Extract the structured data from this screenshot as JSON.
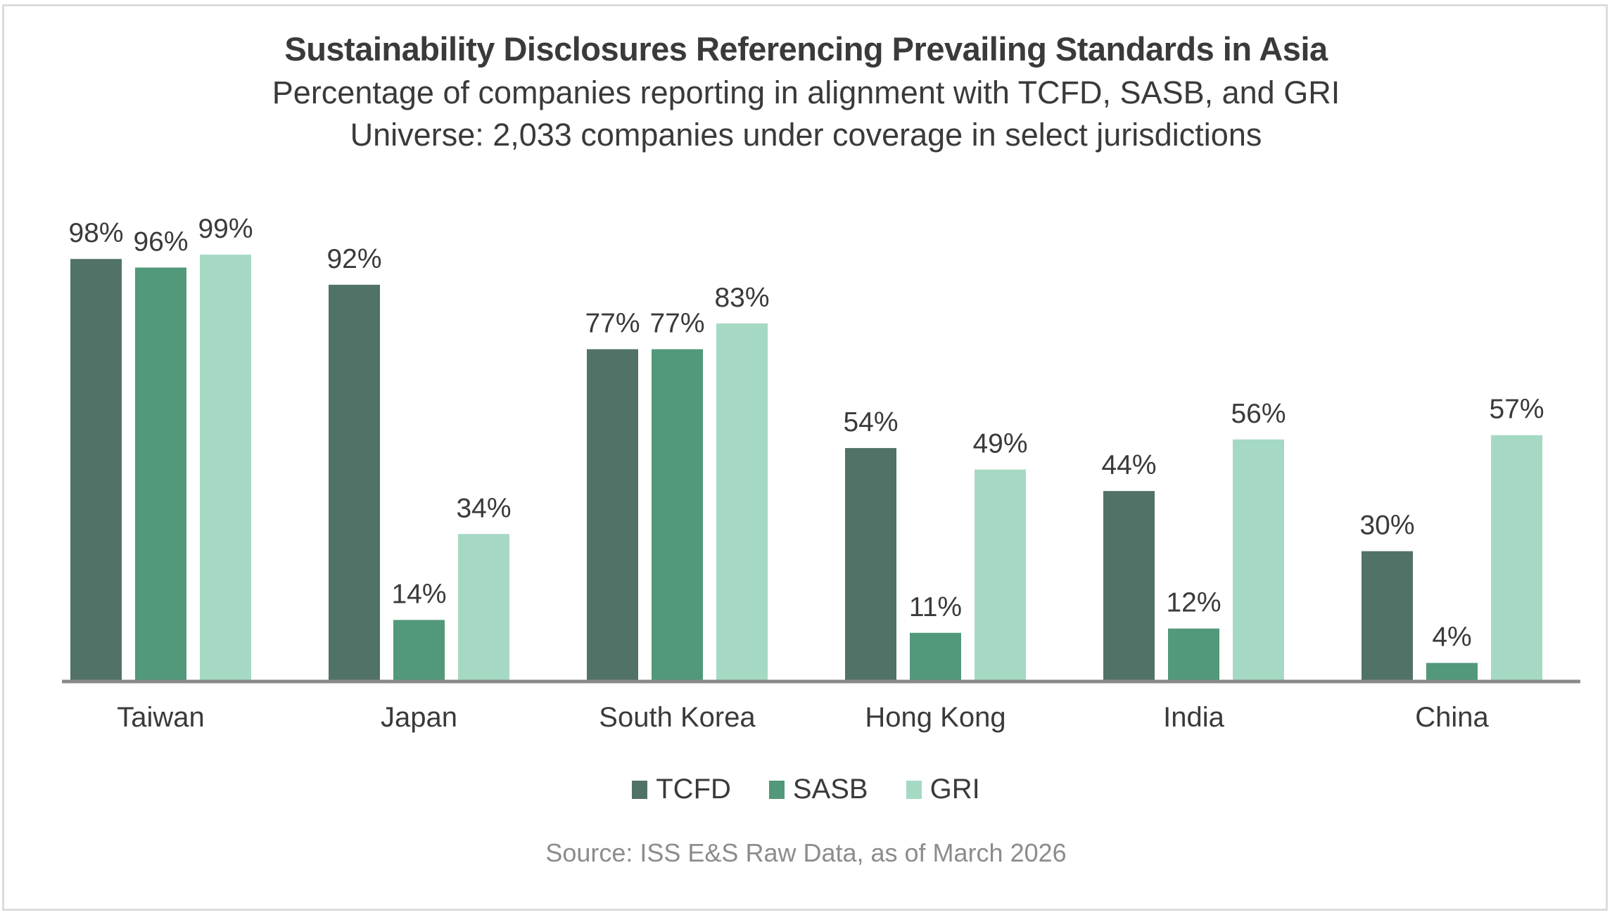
{
  "header": {
    "title": "Sustainability Disclosures Referencing Prevailing Standards in Asia",
    "subtitle": "Percentage of companies reporting in alignment with TCFD, SASB, and GRI",
    "universe": "Universe: 2,033 companies under coverage in select jurisdictions"
  },
  "colors": {
    "TCFD": "#517267",
    "SASB": "#52987a",
    "GRI": "#a5d9c3",
    "axis": "#8a8a8a",
    "text": "#3a3a3a",
    "source": "#8c8c8c"
  },
  "footer": {
    "source": "Source: ISS E&S Raw Data, as of March 2026"
  },
  "chart_data": {
    "type": "bar",
    "title": "Sustainability Disclosures Referencing Prevailing Standards in Asia",
    "subtitle": "Percentage of companies reporting in alignment with TCFD, SASB, and GRI",
    "xlabel": "",
    "ylabel": "",
    "ylim": [
      0,
      100
    ],
    "grid": false,
    "legend_position": "bottom-center",
    "value_format": "percent",
    "categories": [
      "Taiwan",
      "Japan",
      "South Korea",
      "Hong Kong",
      "India",
      "China"
    ],
    "series": [
      {
        "name": "TCFD",
        "values": [
          98,
          92,
          77,
          54,
          44,
          30
        ]
      },
      {
        "name": "SASB",
        "values": [
          96,
          14,
          77,
          11,
          12,
          4
        ]
      },
      {
        "name": "GRI",
        "values": [
          99,
          34,
          83,
          49,
          56,
          57
        ]
      }
    ]
  }
}
